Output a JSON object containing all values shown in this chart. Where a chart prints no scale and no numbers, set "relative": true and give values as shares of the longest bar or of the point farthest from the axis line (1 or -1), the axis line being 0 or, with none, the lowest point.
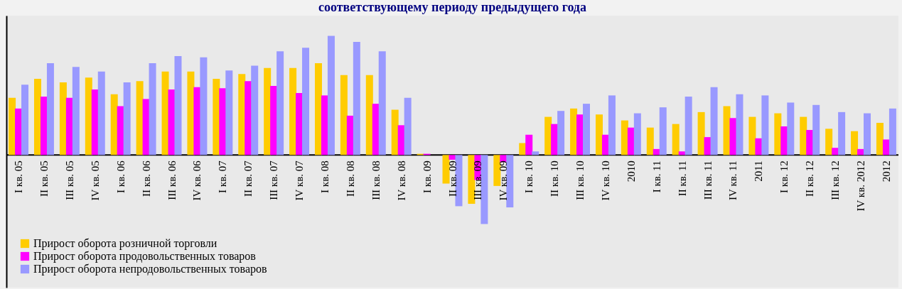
{
  "chart_data": {
    "type": "bar",
    "title": "соответствующему периоду предыдущего года",
    "relative": true,
    "legend": "bottom left",
    "categories": [
      "I кв. 05",
      "II кв. 05",
      "III кв. 05",
      "IV кв. 05",
      "I кв. 06",
      "II кв. 06",
      "III кв. 06",
      "IV кв. 06",
      "I кв. 07",
      "II кв. 07",
      "III кв. 07",
      "IV кв. 07",
      "I кв. 08",
      "II кв. 08",
      "III кв. 08",
      "IV кв. 08",
      "I кв. 09",
      "II кв. 09",
      "III кв. 09",
      "IV кв. 09",
      "I кв. 10",
      "II кв. 10",
      "III кв. 10",
      "IV кв. 10",
      "2010",
      "I кв. 11",
      "II кв. 11",
      "III кв. 11",
      "IV кв. 11",
      "2011",
      "I кв. 12",
      "II кв. 12",
      "III кв. 12",
      "IV кв. 2012",
      "2012"
    ],
    "series": [
      {
        "name": "Прирост оборота розничной торговли",
        "color": "#ffcc00",
        "values": [
          0.48,
          0.64,
          0.61,
          0.65,
          0.51,
          0.62,
          0.7,
          0.7,
          0.64,
          0.68,
          0.73,
          0.73,
          0.77,
          0.67,
          0.67,
          0.38,
          0.01,
          -0.24,
          -0.41,
          -0.26,
          0.1,
          0.32,
          0.39,
          0.34,
          0.29,
          0.23,
          0.26,
          0.36,
          0.41,
          0.32,
          0.35,
          0.32,
          0.22,
          0.2,
          0.27
        ]
      },
      {
        "name": "Прирост оборота продовольственных товаров",
        "color": "#ff00ff",
        "values": [
          0.39,
          0.49,
          0.48,
          0.55,
          0.41,
          0.47,
          0.55,
          0.57,
          0.56,
          0.62,
          0.58,
          0.52,
          0.5,
          0.33,
          0.43,
          0.25,
          0.01,
          -0.04,
          -0.21,
          -0.06,
          0.17,
          0.26,
          0.34,
          0.17,
          0.23,
          0.05,
          0.03,
          0.15,
          0.31,
          0.14,
          0.24,
          0.21,
          0.06,
          0.05,
          0.13
        ]
      },
      {
        "name": "Прирост оборота непродовольственных товаров",
        "color": "#9999ff",
        "values": [
          0.59,
          0.77,
          0.74,
          0.7,
          0.61,
          0.77,
          0.83,
          0.82,
          0.71,
          0.75,
          0.87,
          0.9,
          1,
          0.95,
          0.87,
          0.48,
          0.0,
          -0.43,
          -0.58,
          -0.44,
          0.03,
          0.37,
          0.43,
          0.5,
          0.35,
          0.4,
          0.49,
          0.57,
          0.51,
          0.5,
          0.44,
          0.42,
          0.36,
          0.35,
          0.39
        ]
      }
    ]
  }
}
